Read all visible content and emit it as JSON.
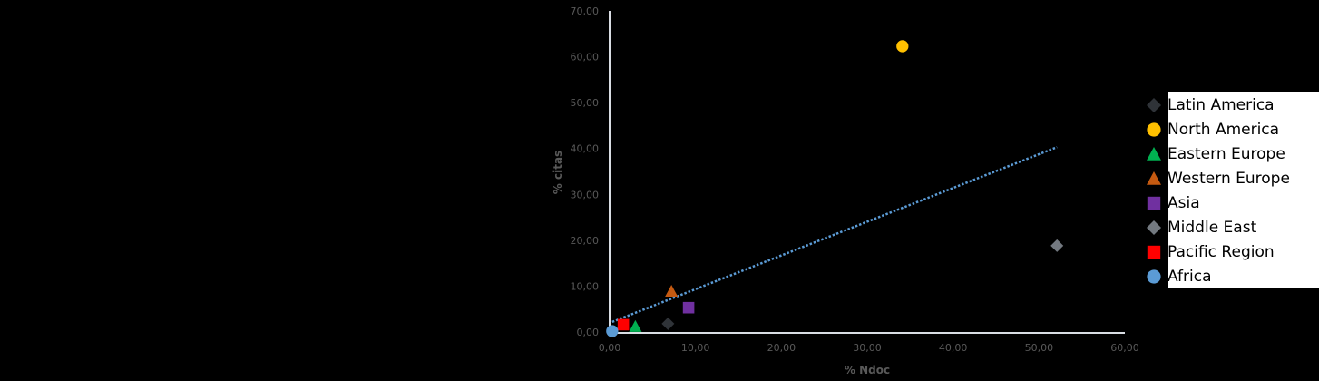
{
  "chart_data": {
    "type": "scatter",
    "title": "",
    "xlabel": "% Ndoc",
    "ylabel": "% citas",
    "xlim": [
      0,
      60
    ],
    "ylim": [
      0,
      70
    ],
    "x_ticks": [
      "0,00",
      "10,00",
      "20,00",
      "30,00",
      "40,00",
      "50,00",
      "60,00"
    ],
    "y_ticks": [
      "0,00",
      "10,00",
      "20,00",
      "30,00",
      "40,00",
      "50,00",
      "60,00",
      "70,00"
    ],
    "grid": false,
    "legend_position": "right",
    "series": [
      {
        "name": "Latin America",
        "marker": "diamond",
        "color": "#2f3338",
        "x": 6.8,
        "y": 1.8
      },
      {
        "name": "North America",
        "marker": "circle",
        "color": "#ffc000",
        "x": 34.1,
        "y": 62.3
      },
      {
        "name": "Eastern Europe",
        "marker": "triangle",
        "color": "#00b050",
        "x": 3.0,
        "y": 1.2
      },
      {
        "name": "Western Europe",
        "marker": "triangle",
        "color": "#c55a11",
        "x": 7.2,
        "y": 8.9
      },
      {
        "name": "Asia",
        "marker": "square",
        "color": "#7030a0",
        "x": 9.2,
        "y": 5.3
      },
      {
        "name": "Middle East",
        "marker": "diamond",
        "color": "#737980",
        "x": 52.1,
        "y": 18.8
      },
      {
        "name": "Pacific Region",
        "marker": "square",
        "color": "#ff0000",
        "x": 1.6,
        "y": 1.6
      },
      {
        "name": "Africa",
        "marker": "circle",
        "color": "#5b9bd5",
        "x": 0.3,
        "y": 0.2
      }
    ],
    "trendline": {
      "type": "linear",
      "style": "dotted",
      "color": "#5b9bd5",
      "x_start": 0.3,
      "y_start": 2.2,
      "x_end": 52.1,
      "y_end": 40.3
    }
  },
  "axes": {
    "xlabel": "% Ndoc",
    "ylabel": "% citas"
  },
  "legend": {
    "items": [
      {
        "label": "Latin America"
      },
      {
        "label": "North America"
      },
      {
        "label": "Eastern Europe"
      },
      {
        "label": "Western Europe"
      },
      {
        "label": "Asia"
      },
      {
        "label": "Middle East"
      },
      {
        "label": "Pacific Region"
      },
      {
        "label": "Africa"
      }
    ]
  }
}
